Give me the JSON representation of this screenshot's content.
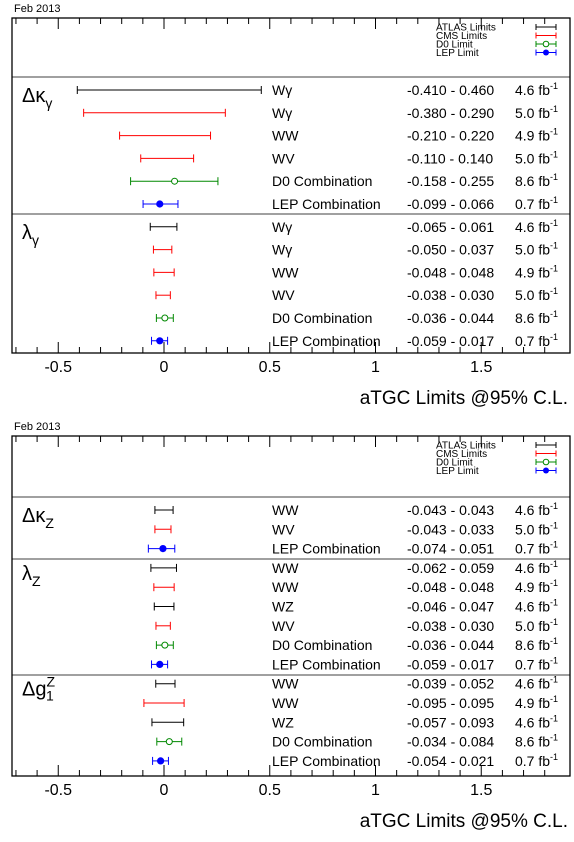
{
  "colors": {
    "ATLAS": "#000000",
    "CMS": "#ff0000",
    "D0": "#008800",
    "LEP": "#0000ff"
  },
  "chart_data": [
    {
      "type": "interval",
      "date": "Feb 2013",
      "xlabel": "aTGC Limits @95% C.L.",
      "xlim": [
        -0.75,
        1.9
      ],
      "xticks": [
        "-0.5",
        "0",
        "0.5",
        "1",
        "1.5"
      ],
      "xtick_values": [
        -0.5,
        0,
        0.5,
        1,
        1.5
      ],
      "legend": [
        {
          "label": "ATLAS Limits",
          "exp": "ATLAS",
          "marker": "none"
        },
        {
          "label": "CMS Limits",
          "exp": "CMS",
          "marker": "none"
        },
        {
          "label": "D0 Limit",
          "exp": "D0",
          "marker": "open"
        },
        {
          "label": "LEP Limit",
          "exp": "LEP",
          "marker": "filled"
        }
      ],
      "groups": [
        {
          "param_main": "Δκ",
          "param_sub": "γ",
          "param_sup": "",
          "rows": [
            {
              "exp": "ATLAS",
              "channel": "Wγ",
              "low": -0.41,
              "high": 0.46,
              "range": "-0.410 - 0.460",
              "lumi": "4.6 fb",
              "marker": "none"
            },
            {
              "exp": "CMS",
              "channel": "Wγ",
              "low": -0.38,
              "high": 0.29,
              "range": "-0.380 - 0.290",
              "lumi": "5.0 fb",
              "marker": "none"
            },
            {
              "exp": "CMS",
              "channel": "WW",
              "low": -0.21,
              "high": 0.22,
              "range": "-0.210 - 0.220",
              "lumi": "4.9 fb",
              "marker": "none"
            },
            {
              "exp": "CMS",
              "channel": "WV",
              "low": -0.11,
              "high": 0.14,
              "range": "-0.110 - 0.140",
              "lumi": "5.0 fb",
              "marker": "none"
            },
            {
              "exp": "D0",
              "channel": "D0 Combination",
              "low": -0.158,
              "high": 0.255,
              "center": 0.05,
              "range": "-0.158 - 0.255",
              "lumi": "8.6 fb",
              "marker": "open"
            },
            {
              "exp": "LEP",
              "channel": "LEP Combination",
              "low": -0.099,
              "high": 0.066,
              "center": -0.02,
              "range": "-0.099 - 0.066",
              "lumi": "0.7 fb",
              "marker": "filled"
            }
          ]
        },
        {
          "param_main": "λ",
          "param_sub": "γ",
          "param_sup": "",
          "rows": [
            {
              "exp": "ATLAS",
              "channel": "Wγ",
              "low": -0.065,
              "high": 0.061,
              "range": "-0.065 - 0.061",
              "lumi": "4.6 fb",
              "marker": "none"
            },
            {
              "exp": "CMS",
              "channel": "Wγ",
              "low": -0.05,
              "high": 0.037,
              "range": "-0.050 - 0.037",
              "lumi": "5.0 fb",
              "marker": "none"
            },
            {
              "exp": "CMS",
              "channel": "WW",
              "low": -0.048,
              "high": 0.048,
              "range": "-0.048 - 0.048",
              "lumi": "4.9 fb",
              "marker": "none"
            },
            {
              "exp": "CMS",
              "channel": "WV",
              "low": -0.038,
              "high": 0.03,
              "range": "-0.038 - 0.030",
              "lumi": "5.0 fb",
              "marker": "none"
            },
            {
              "exp": "D0",
              "channel": "D0 Combination",
              "low": -0.036,
              "high": 0.044,
              "center": 0.004,
              "range": "-0.036 - 0.044",
              "lumi": "8.6 fb",
              "marker": "open"
            },
            {
              "exp": "LEP",
              "channel": "LEP Combination",
              "low": -0.059,
              "high": 0.017,
              "center": -0.02,
              "range": "-0.059 - 0.017",
              "lumi": "0.7 fb",
              "marker": "filled"
            }
          ]
        }
      ]
    },
    {
      "type": "interval",
      "date": "Feb 2013",
      "xlabel": "aTGC Limits @95% C.L.",
      "xlim": [
        -0.75,
        1.9
      ],
      "xticks": [
        "-0.5",
        "0",
        "0.5",
        "1",
        "1.5"
      ],
      "xtick_values": [
        -0.5,
        0,
        0.5,
        1,
        1.5
      ],
      "legend": [
        {
          "label": "ATLAS Limits",
          "exp": "ATLAS",
          "marker": "none"
        },
        {
          "label": "CMS Limits",
          "exp": "CMS",
          "marker": "none"
        },
        {
          "label": "D0 Limit",
          "exp": "D0",
          "marker": "open"
        },
        {
          "label": "LEP Limit",
          "exp": "LEP",
          "marker": "filled"
        }
      ],
      "groups": [
        {
          "param_main": "Δκ",
          "param_sub": "Z",
          "param_sup": "",
          "rows": [
            {
              "exp": "ATLAS",
              "channel": "WW",
              "low": -0.043,
              "high": 0.043,
              "range": "-0.043 - 0.043",
              "lumi": "4.6 fb",
              "marker": "none"
            },
            {
              "exp": "CMS",
              "channel": "WV",
              "low": -0.043,
              "high": 0.033,
              "range": "-0.043 - 0.033",
              "lumi": "5.0 fb",
              "marker": "none"
            },
            {
              "exp": "LEP",
              "channel": "LEP Combination",
              "low": -0.074,
              "high": 0.051,
              "center": -0.005,
              "range": "-0.074 - 0.051",
              "lumi": "0.7 fb",
              "marker": "filled"
            }
          ]
        },
        {
          "param_main": "λ",
          "param_sub": "Z",
          "param_sup": "",
          "rows": [
            {
              "exp": "ATLAS",
              "channel": "WW",
              "low": -0.062,
              "high": 0.059,
              "range": "-0.062 - 0.059",
              "lumi": "4.6 fb",
              "marker": "none"
            },
            {
              "exp": "CMS",
              "channel": "WW",
              "low": -0.048,
              "high": 0.048,
              "range": "-0.048 - 0.048",
              "lumi": "4.9 fb",
              "marker": "none"
            },
            {
              "exp": "ATLAS",
              "channel": "WZ",
              "low": -0.046,
              "high": 0.047,
              "range": "-0.046 - 0.047",
              "lumi": "4.6 fb",
              "marker": "none"
            },
            {
              "exp": "CMS",
              "channel": "WV",
              "low": -0.038,
              "high": 0.03,
              "range": "-0.038 - 0.030",
              "lumi": "5.0 fb",
              "marker": "none"
            },
            {
              "exp": "D0",
              "channel": "D0 Combination",
              "low": -0.036,
              "high": 0.044,
              "center": 0.004,
              "range": "-0.036 - 0.044",
              "lumi": "8.6 fb",
              "marker": "open"
            },
            {
              "exp": "LEP",
              "channel": "LEP Combination",
              "low": -0.059,
              "high": 0.017,
              "center": -0.02,
              "range": "-0.059 - 0.017",
              "lumi": "0.7 fb",
              "marker": "filled"
            }
          ]
        },
        {
          "param_main": "Δg",
          "param_sub": "1",
          "param_sup": "Z",
          "rows": [
            {
              "exp": "ATLAS",
              "channel": "WW",
              "low": -0.039,
              "high": 0.052,
              "range": "-0.039 - 0.052",
              "lumi": "4.6 fb",
              "marker": "none"
            },
            {
              "exp": "CMS",
              "channel": "WW",
              "low": -0.095,
              "high": 0.095,
              "range": "-0.095 - 0.095",
              "lumi": "4.9 fb",
              "marker": "none"
            },
            {
              "exp": "ATLAS",
              "channel": "WZ",
              "low": -0.057,
              "high": 0.093,
              "range": "-0.057 - 0.093",
              "lumi": "4.6 fb",
              "marker": "none"
            },
            {
              "exp": "D0",
              "channel": "D0 Combination",
              "low": -0.034,
              "high": 0.084,
              "center": 0.025,
              "range": "-0.034 - 0.084",
              "lumi": "8.6 fb",
              "marker": "open"
            },
            {
              "exp": "LEP",
              "channel": "LEP Combination",
              "low": -0.054,
              "high": 0.021,
              "center": -0.016,
              "range": "-0.054 - 0.021",
              "lumi": "0.7 fb",
              "marker": "filled"
            }
          ]
        }
      ]
    }
  ]
}
